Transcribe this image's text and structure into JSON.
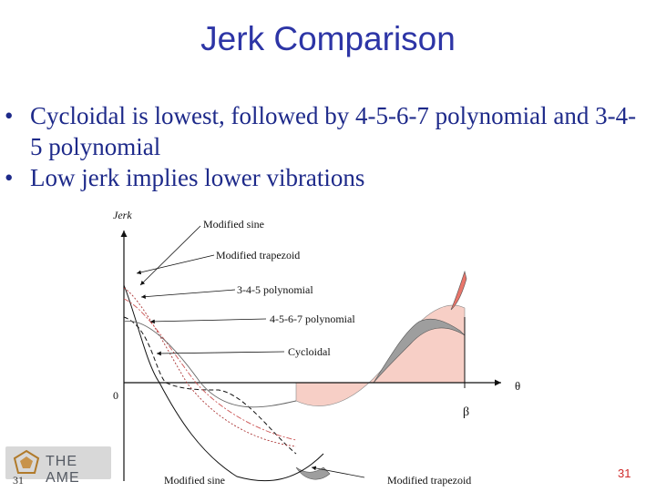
{
  "slide": {
    "title": "Jerk Comparison",
    "bullets": [
      "Cycloidal is lowest, followed by 4-5-6-7 polynomial and 3-4-5 polynomial",
      "Low jerk implies lower vibrations"
    ]
  },
  "figure": {
    "y_axis_label": "Jerk",
    "x_axis_label": "θ",
    "origin_label": "0",
    "beta_label": "β",
    "curve_labels_top": [
      "Modified sine",
      "Modified trapezoid",
      "3-4-5 polynomial",
      "4-5-6-7 polynomial",
      "Cycloidal"
    ],
    "curve_labels_bottom": [
      "Modified sine",
      "Modified trapezoid"
    ],
    "colors": {
      "modified_trapezoid_fill": "#9e9e9e",
      "polynomial_fill": "#e8756a",
      "cycloidal_fill": "#f7cfc6"
    }
  },
  "footer": {
    "logo_text": "THE AME",
    "slide_number_left": "31",
    "slide_number_right": "31"
  }
}
